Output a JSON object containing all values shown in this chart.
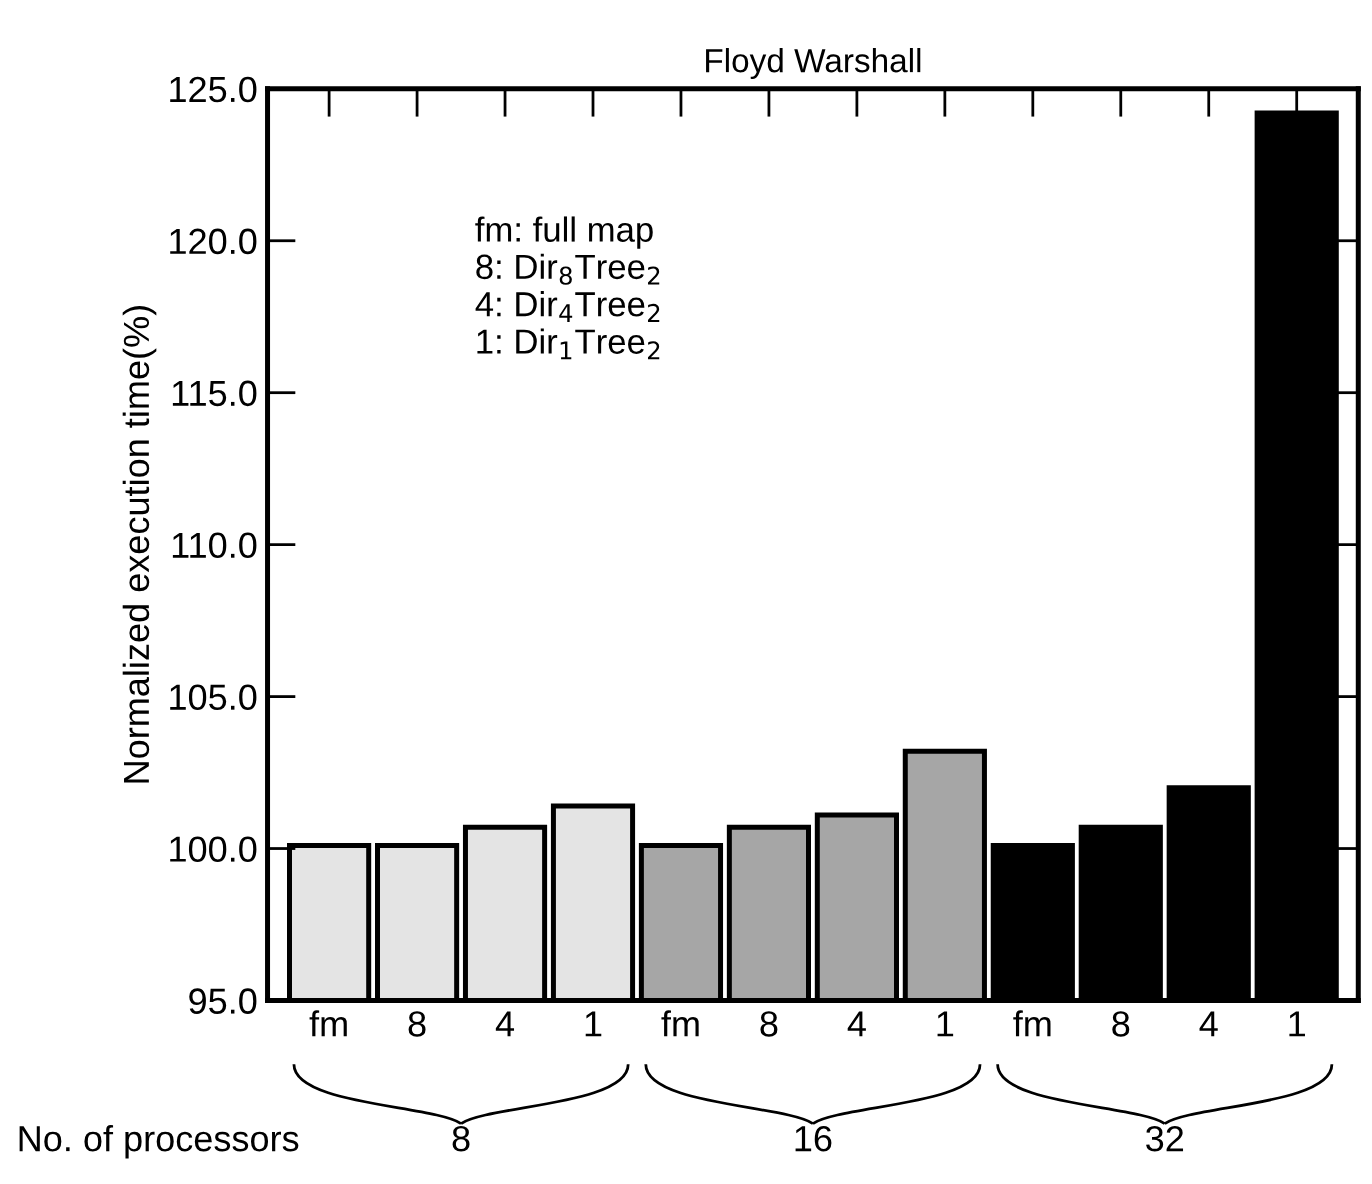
{
  "chart_data": {
    "type": "bar",
    "title": "Floyd Warshall",
    "ylabel": "Normalized execution time(%)",
    "categories": [
      "fm",
      "8",
      "4",
      "1",
      "fm",
      "8",
      "4",
      "1",
      "fm",
      "8",
      "4",
      "1"
    ],
    "values": [
      100.1,
      100.1,
      100.7,
      101.4,
      100.1,
      100.7,
      101.1,
      103.2,
      100.1,
      100.7,
      102.0,
      124.2
    ],
    "colors": [
      "#e4e4e4",
      "#e4e4e4",
      "#e4e4e4",
      "#e4e4e4",
      "#a6a6a6",
      "#a6a6a6",
      "#a6a6a6",
      "#a6a6a6",
      "#000000",
      "#000000",
      "#000000",
      "#000000"
    ],
    "ylim": [
      95,
      125
    ],
    "yticks": [
      {
        "value": 95,
        "label": "95.0"
      },
      {
        "value": 100,
        "label": "100.0"
      },
      {
        "value": 105,
        "label": "105.0"
      },
      {
        "value": 110,
        "label": "110.0"
      },
      {
        "value": 115,
        "label": "115.0"
      },
      {
        "value": 120,
        "label": "120.0"
      },
      {
        "value": 125,
        "label": "125.0"
      }
    ],
    "grid": false,
    "legend": false,
    "annotations": [
      "fm: full map\n8: Dir$_{8}$Tree$_{2}$\n4: Dir$_{4}$Tree$_{2}$\n1: Dir$_{1}$Tree$_{2}$",
      "No. of processors",
      "8",
      "16",
      "32"
    ]
  }
}
